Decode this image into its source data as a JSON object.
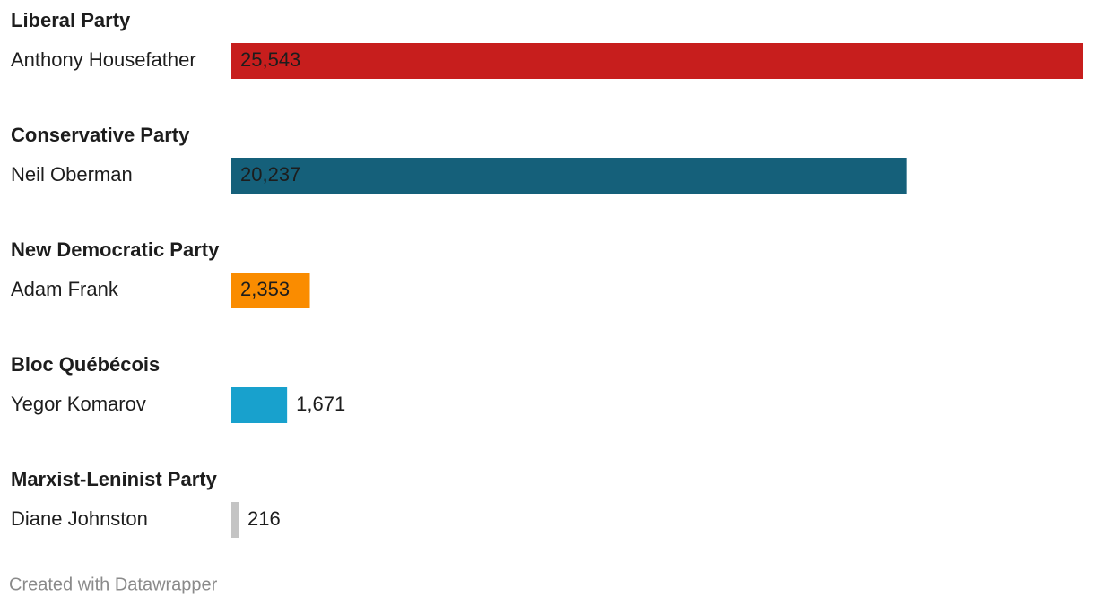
{
  "chart_data": {
    "type": "bar",
    "groups": [
      "Liberal Party",
      "Conservative Party",
      "New Democratic Party",
      "Bloc Québécois",
      "Marxist-Leninist Party"
    ],
    "categories": [
      "Anthony Housefather",
      "Neil Oberman",
      "Adam Frank",
      "Yegor Komarov",
      "Diane Johnston"
    ],
    "values": [
      25543,
      20237,
      2353,
      1671,
      216
    ],
    "value_labels": [
      "25,543",
      "20,237",
      "2,353",
      "1,671",
      "216"
    ],
    "colors": [
      "#c71e1d",
      "#15607a",
      "#fa8c00",
      "#18a1cd",
      "#c4c4c4"
    ],
    "credit": "Created with Datawrapper"
  }
}
